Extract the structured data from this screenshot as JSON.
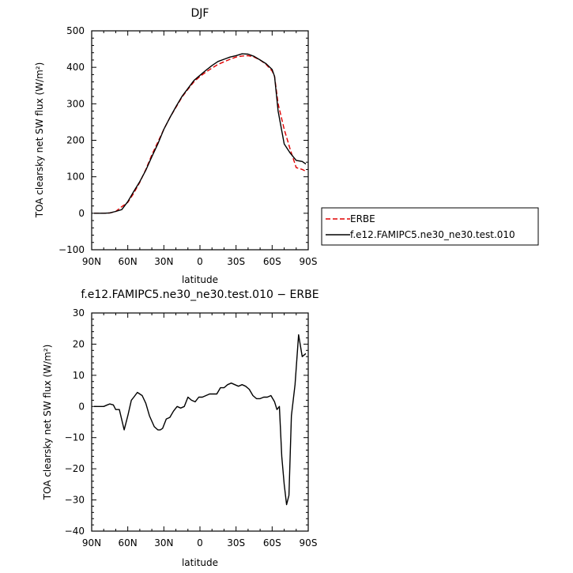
{
  "chart_data": [
    {
      "type": "line",
      "title": "DJF",
      "xlabel": "latitude",
      "ylabel": "TOA clearsky net SW flux (W/m²)",
      "xlim": [
        -90,
        90
      ],
      "ylim": [
        -100,
        500
      ],
      "xticks": [
        -90,
        -60,
        -30,
        0,
        30,
        60,
        90
      ],
      "xtick_labels": [
        "90N",
        "60N",
        "30N",
        "0",
        "30S",
        "60S",
        "90S"
      ],
      "yticks": [
        -100,
        0,
        100,
        200,
        300,
        400,
        500
      ],
      "ytick_labels": [
        "−100",
        "0",
        "100",
        "200",
        "300",
        "400",
        "500"
      ],
      "legend_position": "right",
      "series": [
        {
          "name": "ERBE",
          "color": "#e00000",
          "dash": "dashed",
          "x": [
            -88,
            -80,
            -75,
            -70,
            -65,
            -60,
            -55,
            -50,
            -45,
            -40,
            -35,
            -30,
            -25,
            -20,
            -15,
            -10,
            -5,
            0,
            5,
            10,
            15,
            20,
            25,
            30,
            35,
            40,
            45,
            50,
            55,
            60,
            62,
            65,
            70,
            75,
            80,
            85,
            88
          ],
          "y": [
            0,
            0,
            1,
            5,
            18,
            30,
            55,
            85,
            120,
            160,
            195,
            230,
            262,
            290,
            318,
            340,
            360,
            375,
            387,
            398,
            408,
            415,
            422,
            428,
            431,
            432,
            428,
            420,
            408,
            390,
            375,
            300,
            230,
            175,
            125,
            120,
            115
          ]
        },
        {
          "name": "f.e12.FAMIPC5.ne30_ne30.test.010",
          "color": "#000000",
          "dash": "solid",
          "x": [
            -88,
            -80,
            -75,
            -70,
            -65,
            -60,
            -55,
            -50,
            -45,
            -40,
            -35,
            -30,
            -25,
            -20,
            -15,
            -10,
            -5,
            0,
            5,
            10,
            15,
            20,
            25,
            30,
            35,
            40,
            45,
            50,
            55,
            60,
            62,
            65,
            70,
            75,
            80,
            85,
            88
          ],
          "y": [
            0,
            0,
            1,
            5,
            10,
            32,
            60,
            87,
            118,
            155,
            190,
            230,
            262,
            292,
            320,
            342,
            364,
            378,
            392,
            405,
            416,
            422,
            428,
            432,
            437,
            436,
            430,
            420,
            410,
            394,
            375,
            280,
            190,
            165,
            145,
            142,
            135
          ]
        }
      ]
    },
    {
      "type": "line",
      "title": "f.e12.FAMIPC5.ne30_ne30.test.010 − ERBE",
      "xlabel": "latitude",
      "ylabel": "TOA clearsky net SW flux (W/m²)",
      "xlim": [
        -90,
        90
      ],
      "ylim": [
        -40,
        30
      ],
      "xticks": [
        -90,
        -60,
        -30,
        0,
        30,
        60,
        90
      ],
      "xtick_labels": [
        "90N",
        "60N",
        "30N",
        "0",
        "30S",
        "60S",
        "90S"
      ],
      "yticks": [
        -40,
        -30,
        -20,
        -10,
        0,
        10,
        20,
        30
      ],
      "ytick_labels": [
        "−40",
        "−30",
        "−20",
        "−10",
        "0",
        "10",
        "20",
        "30"
      ],
      "series": [
        {
          "color": "#000000",
          "dash": "solid",
          "x": [
            -88,
            -85,
            -80,
            -77,
            -75,
            -72,
            -70,
            -67,
            -63,
            -60,
            -57,
            -55,
            -52,
            -48,
            -45,
            -42,
            -38,
            -35,
            -33,
            -31,
            -28,
            -25,
            -22,
            -19,
            -16,
            -13,
            -10,
            -7,
            -4,
            -1,
            2,
            5,
            8,
            11,
            14,
            17,
            20,
            23,
            26,
            29,
            32,
            35,
            38,
            41,
            44,
            47,
            50,
            53,
            56,
            59,
            62,
            64,
            66,
            68,
            70,
            72,
            74,
            76,
            79,
            82,
            85,
            88
          ],
          "y": [
            0,
            0,
            0,
            0.5,
            0.8,
            0.5,
            -1,
            -1,
            -7.5,
            -3,
            2,
            3,
            4.5,
            3.5,
            1,
            -3,
            -6.5,
            -7.5,
            -7.5,
            -7,
            -4,
            -3.5,
            -1.5,
            0,
            -0.5,
            0,
            3,
            2,
            1.5,
            3,
            3,
            3.5,
            4,
            4,
            4,
            6,
            6,
            7,
            7.5,
            7,
            6.5,
            7,
            6.5,
            5.5,
            3.5,
            2.5,
            2.5,
            3,
            3,
            3.5,
            1.5,
            -1,
            0,
            -16,
            -25,
            -31.5,
            -28.5,
            -3,
            7,
            23,
            16,
            17
          ]
        }
      ]
    }
  ]
}
